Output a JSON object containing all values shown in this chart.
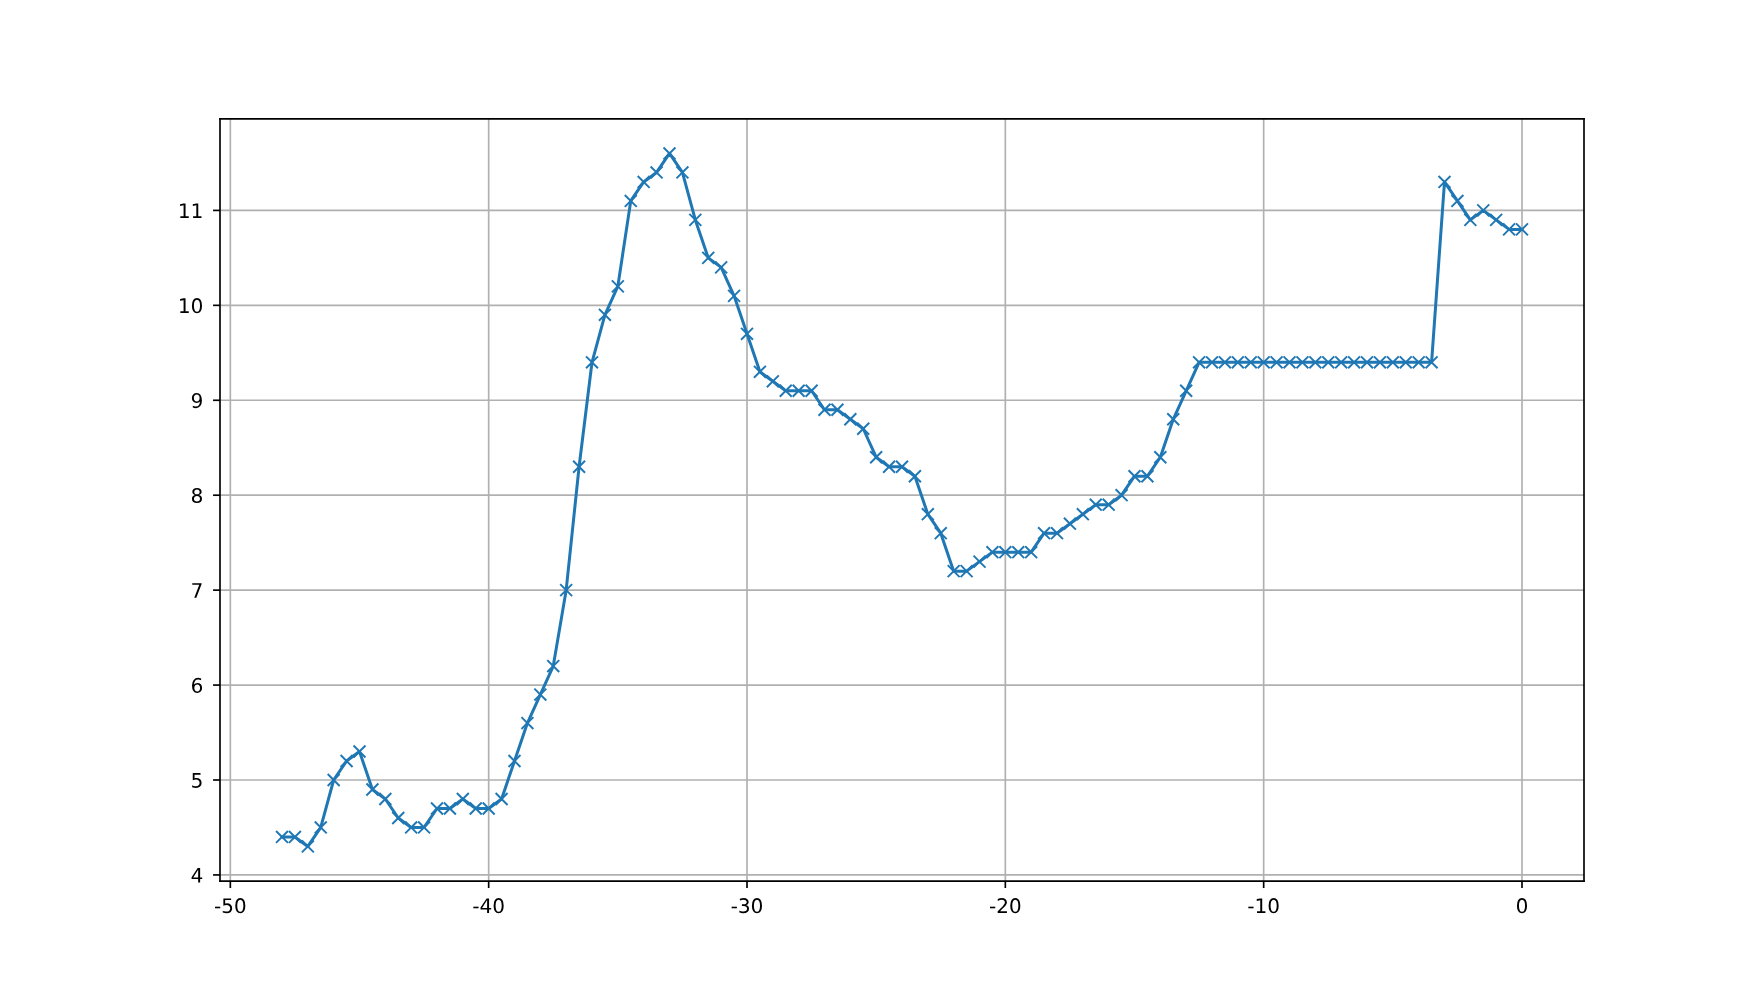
{
  "chart_data": {
    "type": "line",
    "x": [
      -48,
      -47.5,
      -47,
      -46.5,
      -46,
      -45.5,
      -45,
      -44.5,
      -44,
      -43.5,
      -43,
      -42.5,
      -42,
      -41.5,
      -41,
      -40.5,
      -40,
      -39.5,
      -39,
      -38.5,
      -38,
      -37.5,
      -37,
      -36.5,
      -36,
      -35.5,
      -35,
      -34.5,
      -34,
      -33.5,
      -33,
      -32.5,
      -32,
      -31.5,
      -31,
      -30.5,
      -30,
      -29.5,
      -29,
      -28.5,
      -28,
      -27.5,
      -27,
      -26.5,
      -26,
      -25.5,
      -25,
      -24.5,
      -24,
      -23.5,
      -23,
      -22.5,
      -22,
      -21.5,
      -21,
      -20.5,
      -20,
      -19.5,
      -19,
      -18.5,
      -18,
      -17.5,
      -17,
      -16.5,
      -16,
      -15.5,
      -15,
      -14.5,
      -14,
      -13.5,
      -13,
      -12.5,
      -12,
      -11.5,
      -11,
      -10.5,
      -10,
      -9.5,
      -9,
      -8.5,
      -8,
      -7.5,
      -7,
      -6.5,
      -6,
      -5.5,
      -5,
      -4.5,
      -4,
      -3.5,
      -3,
      -2.5,
      -2,
      -1.5,
      -1,
      -0.5,
      0
    ],
    "series": [
      {
        "color": "#1f77b4",
        "values": [
          4.4,
          4.4,
          4.3,
          4.5,
          5.0,
          5.2,
          5.3,
          4.9,
          4.8,
          4.6,
          4.5,
          4.5,
          4.7,
          4.7,
          4.8,
          4.7,
          4.7,
          4.8,
          5.2,
          5.6,
          5.9,
          6.2,
          7.0,
          8.3,
          9.4,
          9.9,
          10.2,
          11.1,
          11.3,
          11.4,
          11.6,
          11.4,
          10.9,
          10.5,
          10.4,
          10.1,
          9.7,
          9.3,
          9.2,
          9.1,
          9.1,
          9.1,
          8.9,
          8.9,
          8.8,
          8.7,
          8.4,
          8.3,
          8.3,
          8.2,
          7.8,
          7.6,
          7.2,
          7.2,
          7.3,
          7.4,
          7.4,
          7.4,
          7.4,
          7.6,
          7.6,
          7.7,
          7.8,
          7.9,
          7.9,
          8.0,
          8.2,
          8.2,
          8.4,
          8.8,
          9.1,
          9.4,
          9.4,
          9.4,
          9.4,
          9.4,
          9.4,
          9.4,
          9.4,
          9.4,
          9.4,
          9.4,
          9.4,
          9.4,
          9.4,
          9.4,
          9.4,
          9.4,
          9.4,
          9.4,
          11.3,
          11.1,
          10.9,
          11.0,
          10.9,
          10.8,
          10.8
        ]
      }
    ],
    "xlim": [
      -50.4,
      2.4
    ],
    "ylim": [
      3.935,
      11.965
    ],
    "xticks": [
      -50,
      -40,
      -30,
      -20,
      -10,
      0
    ],
    "yticks": [
      4,
      5,
      6,
      7,
      8,
      9,
      10,
      11
    ],
    "grid": true,
    "marker": "cross",
    "line_style": "solid"
  }
}
